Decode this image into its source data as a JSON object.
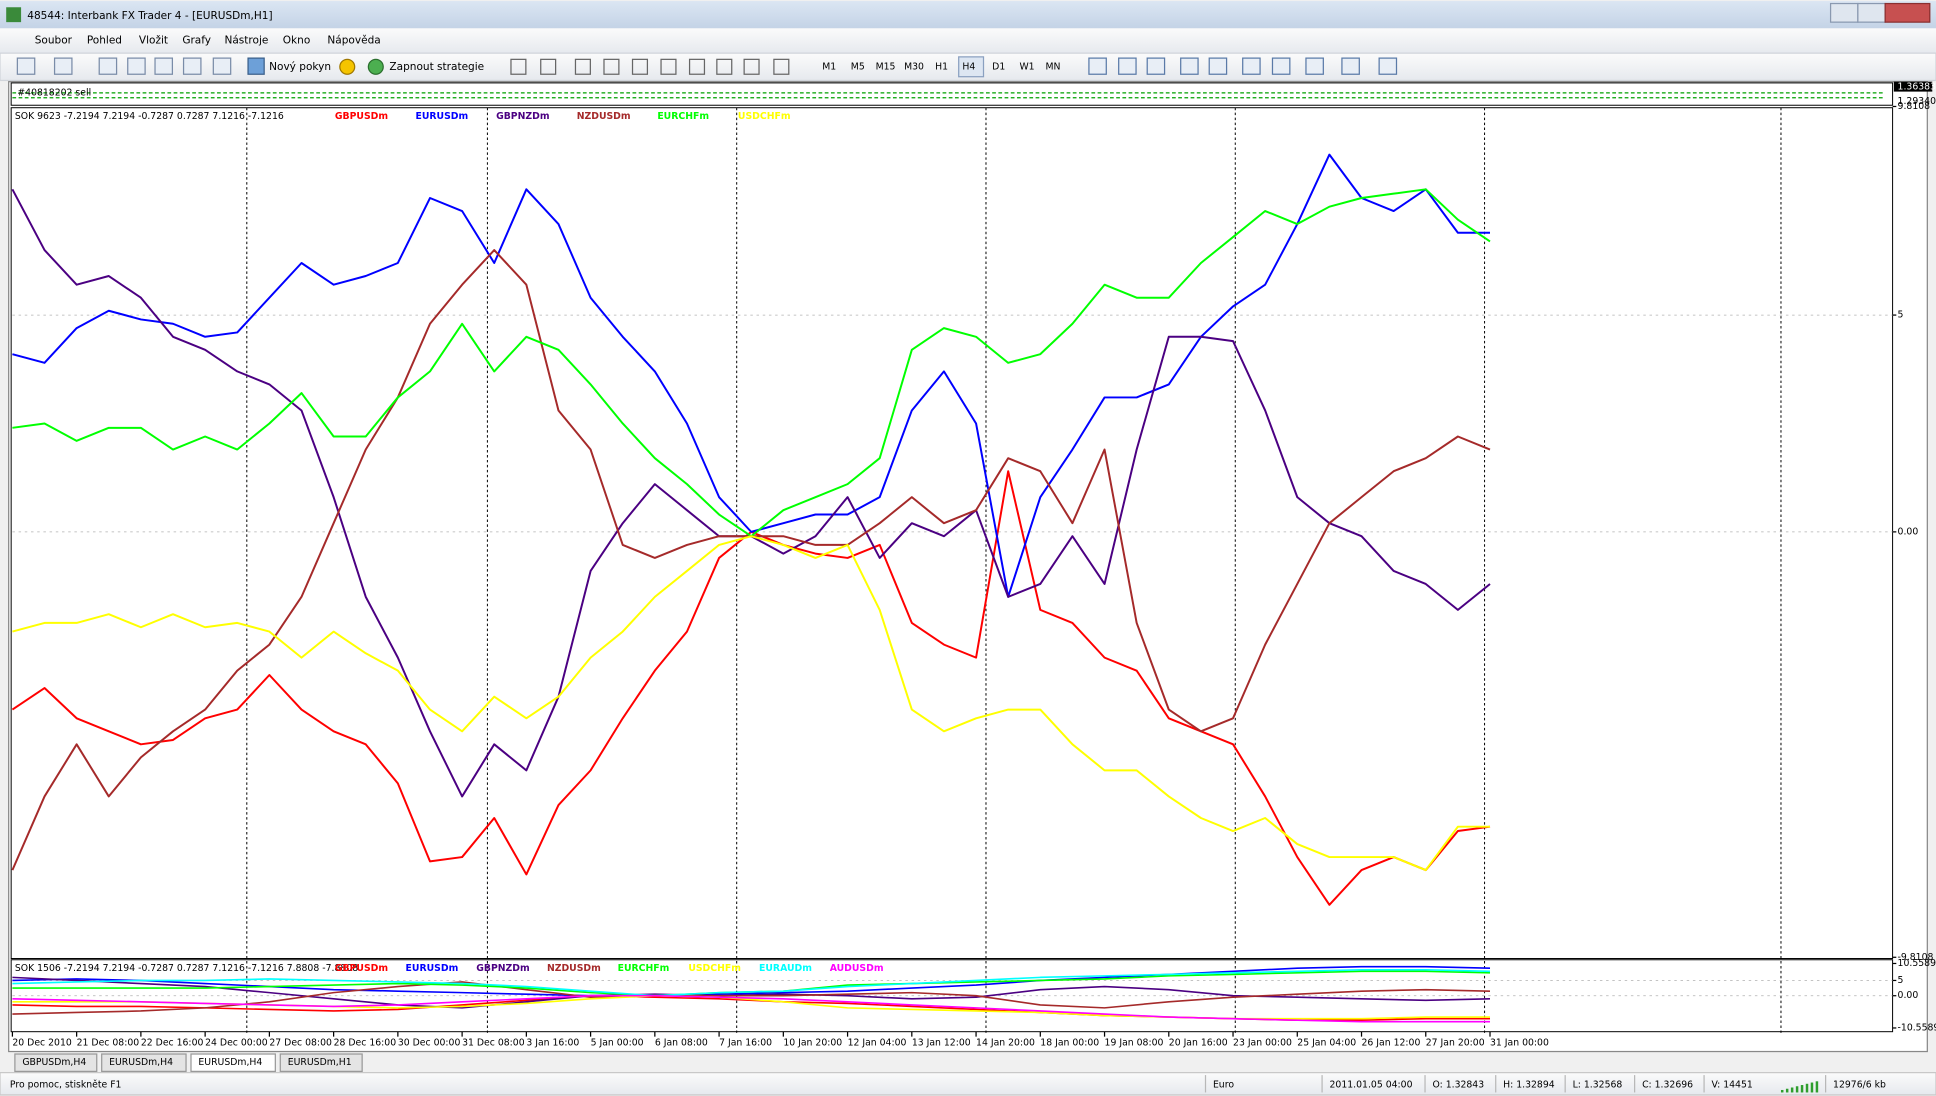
{
  "window": {
    "title": "48544: Interbank FX Trader 4 - [EURUSDm,H1]",
    "menu": [
      "Soubor",
      "Pohled",
      "Vložit",
      "Grafy",
      "Nástroje",
      "Okno",
      "Nápověda"
    ],
    "toolbar": {
      "new_order": "Nový pokyn",
      "strategies": "Zapnout strategie",
      "timeframes": [
        "M1",
        "M5",
        "M15",
        "M30",
        "H1",
        "H4",
        "D1",
        "W1",
        "MN"
      ]
    }
  },
  "price_strip": {
    "label": "#40818202 sell",
    "prices": [
      "1.36383",
      "1.29340"
    ]
  },
  "chart_data": [
    {
      "type": "line",
      "annotation": "SOK 9623 -7.2194 7.2194 -0.7287 0.7287 7.1216 -7.1216",
      "categories": [
        "20 Dec 2010",
        null,
        "21 Dec 08:00",
        null,
        "22 Dec 16:00",
        null,
        "24 Dec 00:00",
        null,
        "27 Dec 08:00",
        null,
        "28 Dec 16:00",
        null,
        "30 Dec 00:00",
        null,
        "31 Dec 08:00",
        null,
        "3 Jan 16:00",
        null,
        "5 Jan 00:00",
        null,
        "6 Jan 08:00",
        null,
        "7 Jan 16:00",
        null,
        "10 Jan 20:00",
        null,
        "12 Jan 04:00",
        null,
        "13 Jan 12:00",
        null,
        "14 Jan 20:00",
        null,
        "18 Jan 00:00",
        null,
        "19 Jan 08:00",
        null,
        "20 Jan 16:00",
        null,
        "23 Jan 00:00",
        null,
        "25 Jan 04:00",
        null,
        "26 Jan 12:00",
        null,
        "27 Jan 20:00",
        null,
        "31 Jan 00:00"
      ],
      "ylim": [
        -9.8108,
        9.8108
      ],
      "yticks": [
        9.8108,
        5,
        {
          "value": 0,
          "label": "0.00"
        },
        -9.8108
      ],
      "grid": true,
      "series": [
        {
          "name": "GBPUSDm",
          "color": "#ff0000",
          "values": [
            -4.1,
            -3.6,
            -4.3,
            -4.6,
            -4.9,
            -4.8,
            -4.3,
            -4.1,
            -3.3,
            -4.1,
            -4.6,
            -4.9,
            -5.8,
            -7.6,
            -7.5,
            -6.6,
            -7.9,
            -6.3,
            -5.5,
            -4.3,
            -3.2,
            -2.3,
            -0.6,
            0,
            -0.3,
            -0.5,
            -0.6,
            -0.3,
            -2.1,
            -2.6,
            -2.9,
            1.4,
            -1.8,
            -2.1,
            -2.9,
            -3.2,
            -4.3,
            -4.6,
            -4.9,
            -6.1,
            -7.5,
            -8.6,
            -7.8,
            -7.5,
            -7.8,
            -6.9,
            -6.8
          ]
        },
        {
          "name": "EURUSDm",
          "color": "#0000ff",
          "values": [
            4.1,
            3.9,
            4.7,
            5.1,
            4.9,
            4.8,
            4.5,
            4.6,
            5.4,
            6.2,
            5.7,
            5.9,
            6.2,
            7.7,
            7.4,
            6.2,
            7.9,
            7.1,
            5.4,
            4.5,
            3.7,
            2.5,
            0.8,
            0,
            0.2,
            0.4,
            0.4,
            0.8,
            2.8,
            3.7,
            2.5,
            -1.5,
            0.8,
            1.9,
            3.1,
            3.1,
            3.4,
            4.5,
            5.2,
            5.7,
            7.1,
            8.7,
            7.7,
            7.4,
            7.9,
            6.9,
            6.9
          ]
        },
        {
          "name": "GBPNZDm",
          "color": "#4b0082",
          "values": [
            7.9,
            6.5,
            5.7,
            5.9,
            5.4,
            4.5,
            4.2,
            3.7,
            3.4,
            2.8,
            0.8,
            -1.5,
            -2.9,
            -4.6,
            -6.1,
            -4.9,
            -5.5,
            -3.8,
            -0.9,
            0.2,
            1.1,
            0.5,
            -0.1,
            -0.1,
            -0.5,
            -0.1,
            0.8,
            -0.6,
            0.2,
            -0.1,
            0.5,
            -1.5,
            -1.2,
            -0.1,
            -1.2,
            1.9,
            4.5,
            4.5,
            4.4,
            2.8,
            0.8,
            0.2,
            -0.1,
            -0.9,
            -1.2,
            -1.8,
            -1.2
          ]
        },
        {
          "name": "NZDUSDm",
          "color": "#a52a2a",
          "values": [
            -7.8,
            -6.1,
            -4.9,
            -6.1,
            -5.2,
            -4.6,
            -4.1,
            -3.2,
            -2.6,
            -1.5,
            0.2,
            1.9,
            3.1,
            4.8,
            5.7,
            6.5,
            5.7,
            2.8,
            1.9,
            -0.3,
            -0.6,
            -0.3,
            -0.1,
            -0.1,
            -0.1,
            -0.3,
            -0.3,
            0.2,
            0.8,
            0.2,
            0.5,
            1.7,
            1.4,
            0.2,
            1.9,
            -2.1,
            -4.1,
            -4.6,
            -4.3,
            -2.6,
            -1.2,
            0.2,
            0.8,
            1.4,
            1.7,
            2.2,
            1.9
          ]
        },
        {
          "name": "EURCHFm",
          "color": "#00ff00",
          "values": [
            2.4,
            2.5,
            2.1,
            2.4,
            2.4,
            1.9,
            2.2,
            1.9,
            2.5,
            3.2,
            2.2,
            2.2,
            3.1,
            3.7,
            4.8,
            3.7,
            4.5,
            4.2,
            3.4,
            2.5,
            1.7,
            1.1,
            0.4,
            -0.1,
            0.5,
            0.8,
            1.1,
            1.7,
            4.2,
            4.7,
            4.5,
            3.9,
            4.1,
            4.8,
            5.7,
            5.4,
            5.4,
            6.2,
            6.8,
            7.4,
            7.1,
            7.5,
            7.7,
            7.8,
            7.9,
            7.2,
            6.7
          ]
        },
        {
          "name": "USDCHFm",
          "color": "#ffff00",
          "values": [
            -2.3,
            -2.1,
            -2.1,
            -1.9,
            -2.2,
            -1.9,
            -2.2,
            -2.1,
            -2.3,
            -2.9,
            -2.3,
            -2.8,
            -3.2,
            -4.1,
            -4.6,
            -3.8,
            -4.3,
            -3.8,
            -2.9,
            -2.3,
            -1.5,
            -0.9,
            -0.3,
            -0.1,
            -0.3,
            -0.6,
            -0.3,
            -1.8,
            -4.1,
            -4.6,
            -4.3,
            -4.1,
            -4.1,
            -4.9,
            -5.5,
            -5.5,
            -6.1,
            -6.6,
            -6.9,
            -6.6,
            -7.2,
            -7.5,
            -7.5,
            -7.5,
            -7.8,
            -6.8,
            -6.8
          ]
        }
      ]
    },
    {
      "type": "line",
      "annotation": "SOK 1506 -7.2194 7.2194 -0.7287 0.7287 7.1216 -7.1216 7.8808 -7.8808",
      "ylim": [
        -10.5589,
        10.5589
      ],
      "yticks": [
        10.5589,
        5,
        {
          "value": 0,
          "label": "0.00"
        },
        -10.5589
      ],
      "grid": true,
      "series": [
        {
          "name": "GBPUSDm",
          "color": "#ff0000",
          "values": [
            -3,
            -3.5,
            -3.5,
            -4,
            -4.5,
            -5,
            -4.5,
            -3,
            -1.5,
            0,
            -0.5,
            -1,
            -2,
            -2.5,
            -3.5,
            -4.5,
            -5.5,
            -6.5,
            -7,
            -7.5,
            -8,
            -8,
            -7.5,
            -7.5
          ]
        },
        {
          "name": "EURUSDm",
          "color": "#0000ff",
          "values": [
            5,
            5.5,
            5,
            4,
            3,
            2,
            1.5,
            1,
            0.5,
            0,
            0,
            0.5,
            1,
            1.5,
            2.5,
            3.5,
            5,
            6,
            7,
            8,
            9,
            9.5,
            9.5,
            9
          ]
        },
        {
          "name": "GBPNZDm",
          "color": "#4b0082",
          "values": [
            6,
            5,
            4,
            3,
            1,
            -1,
            -3,
            -4,
            -2,
            0,
            0.5,
            0,
            0.5,
            0,
            -1,
            -0.5,
            2,
            3,
            2,
            0,
            -0.5,
            -1,
            -1.5,
            -1
          ]
        },
        {
          "name": "NZDUSDm",
          "color": "#a52a2a",
          "values": [
            -6,
            -5.5,
            -5,
            -4,
            -2,
            1,
            3,
            4.5,
            2,
            -0.5,
            0,
            0,
            0,
            0.5,
            1,
            0,
            -3,
            -4,
            -2,
            -0.5,
            0.5,
            1.5,
            2,
            1.5
          ]
        },
        {
          "name": "EURCHFm",
          "color": "#00ff00",
          "values": [
            2.5,
            2.5,
            2.5,
            2.5,
            3,
            3.5,
            4,
            3.5,
            2.5,
            1,
            0,
            1,
            1.5,
            3.5,
            4,
            4.5,
            5,
            5.5,
            6.5,
            7,
            7.5,
            8,
            8,
            7.5
          ]
        },
        {
          "name": "USDCHFm",
          "color": "#ffff00",
          "values": [
            -2,
            -2,
            -2,
            -2.5,
            -3,
            -3.5,
            -4,
            -3.5,
            -2.5,
            -1,
            0,
            -0.5,
            -2,
            -4,
            -4.5,
            -5,
            -5.5,
            -6.5,
            -7,
            -7.5,
            -7.5,
            -7.5,
            -7,
            -7
          ]
        },
        {
          "name": "EURAUDm",
          "color": "#00ffff",
          "values": [
            4,
            4.5,
            5,
            5,
            5.5,
            5,
            4.5,
            4,
            3,
            1.5,
            0,
            1,
            1.5,
            3,
            4,
            5,
            6,
            6.5,
            7,
            7.5,
            8,
            8.5,
            8.5,
            8
          ]
        },
        {
          "name": "AUDUSDm",
          "color": "#ff00ff",
          "values": [
            -1,
            -1.5,
            -2,
            -2.5,
            -3,
            -3.5,
            -3,
            -2,
            -1,
            0,
            0,
            -0.5,
            -1,
            -2,
            -3,
            -4,
            -5,
            -6,
            -7,
            -7.5,
            -8,
            -8.5,
            -8.5,
            -8.5
          ]
        }
      ]
    }
  ],
  "tabs": [
    "GBPUSDm,H4",
    "EURUSDm,H4",
    "EURUSDm,H4",
    "EURUSDm,H1"
  ],
  "status_bar": [
    "Pro pomoc, stiskněte F1",
    "Euro",
    "2011.01.05 04:00",
    "O: 1.32843",
    "H: 1.32894",
    "L: 1.32568",
    "C: 1.32696",
    "V: 14451",
    "12976/6 kb"
  ]
}
